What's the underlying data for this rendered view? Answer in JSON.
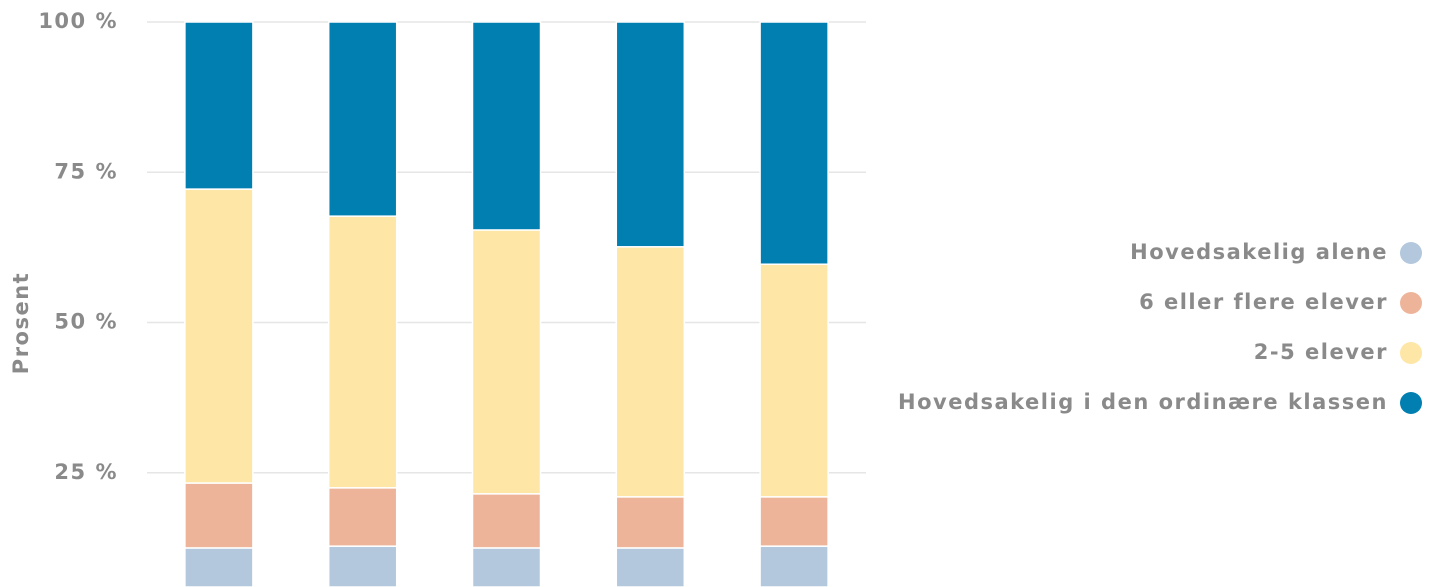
{
  "chart_data": {
    "type": "stacked_bar",
    "y_label": "Prosent",
    "categories": [
      null,
      null,
      null,
      null,
      null
    ],
    "series": [
      {
        "name": "Hovedsakelig alene",
        "color": "#b3c8dd",
        "values": [
          12.5,
          12.8,
          12.5,
          12.5,
          12.8
        ]
      },
      {
        "name": "6 eller flere elever",
        "color": "#eeb49a",
        "values": [
          10.8,
          9.7,
          9.0,
          8.5,
          8.2
        ]
      },
      {
        "name": "2-5 elever",
        "color": "#fee6a6",
        "values": [
          48.9,
          45.2,
          43.9,
          41.6,
          38.7
        ]
      },
      {
        "name": "Hovedsakelig i den ordinære klassen",
        "color": "#007fb0",
        "values": [
          27.8,
          32.3,
          34.6,
          37.4,
          40.3
        ]
      }
    ],
    "ylim": [
      6,
      100
    ],
    "yticks": [
      {
        "value": 25,
        "label": "25 %"
      },
      {
        "value": 50,
        "label": "50 %"
      },
      {
        "value": 75,
        "label": "75 %"
      },
      {
        "value": 100,
        "label": "100 %"
      }
    ],
    "grid": true,
    "legend": "right"
  }
}
